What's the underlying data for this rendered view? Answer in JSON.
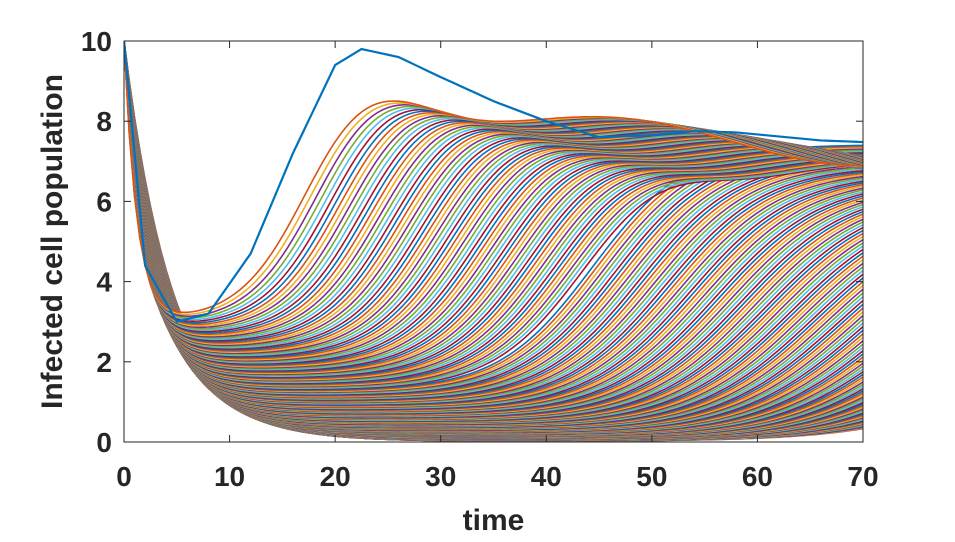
{
  "chart_data": {
    "type": "line",
    "title": "",
    "xlabel": "time",
    "ylabel": "Infected cell population",
    "xlim": [
      0,
      70
    ],
    "ylim": [
      0,
      10
    ],
    "xticks": [
      0,
      10,
      20,
      30,
      40,
      50,
      60,
      70
    ],
    "yticks": [
      0,
      2,
      4,
      6,
      8,
      10
    ],
    "grid": false,
    "legend": "none",
    "series_count": 200,
    "series_colors": [
      "#0072BD",
      "#D95319",
      "#EDB120",
      "#7E2F8E",
      "#77AC30",
      "#4DBEEE",
      "#A2142F"
    ],
    "envelope_series": {
      "name": "",
      "x": [
        0,
        2,
        5,
        8,
        12,
        16,
        20,
        22.5,
        26,
        30,
        35,
        40,
        45,
        50,
        54,
        58,
        62,
        66,
        70
      ],
      "y": [
        10,
        4.4,
        3.0,
        3.2,
        4.7,
        7.2,
        9.4,
        9.8,
        9.6,
        9.1,
        8.5,
        8.0,
        7.6,
        7.65,
        7.75,
        7.72,
        7.62,
        7.52,
        7.48
      ]
    },
    "trailing_series_endpoints": {
      "x": 70,
      "y_range": [
        0.1,
        4.3
      ]
    }
  }
}
